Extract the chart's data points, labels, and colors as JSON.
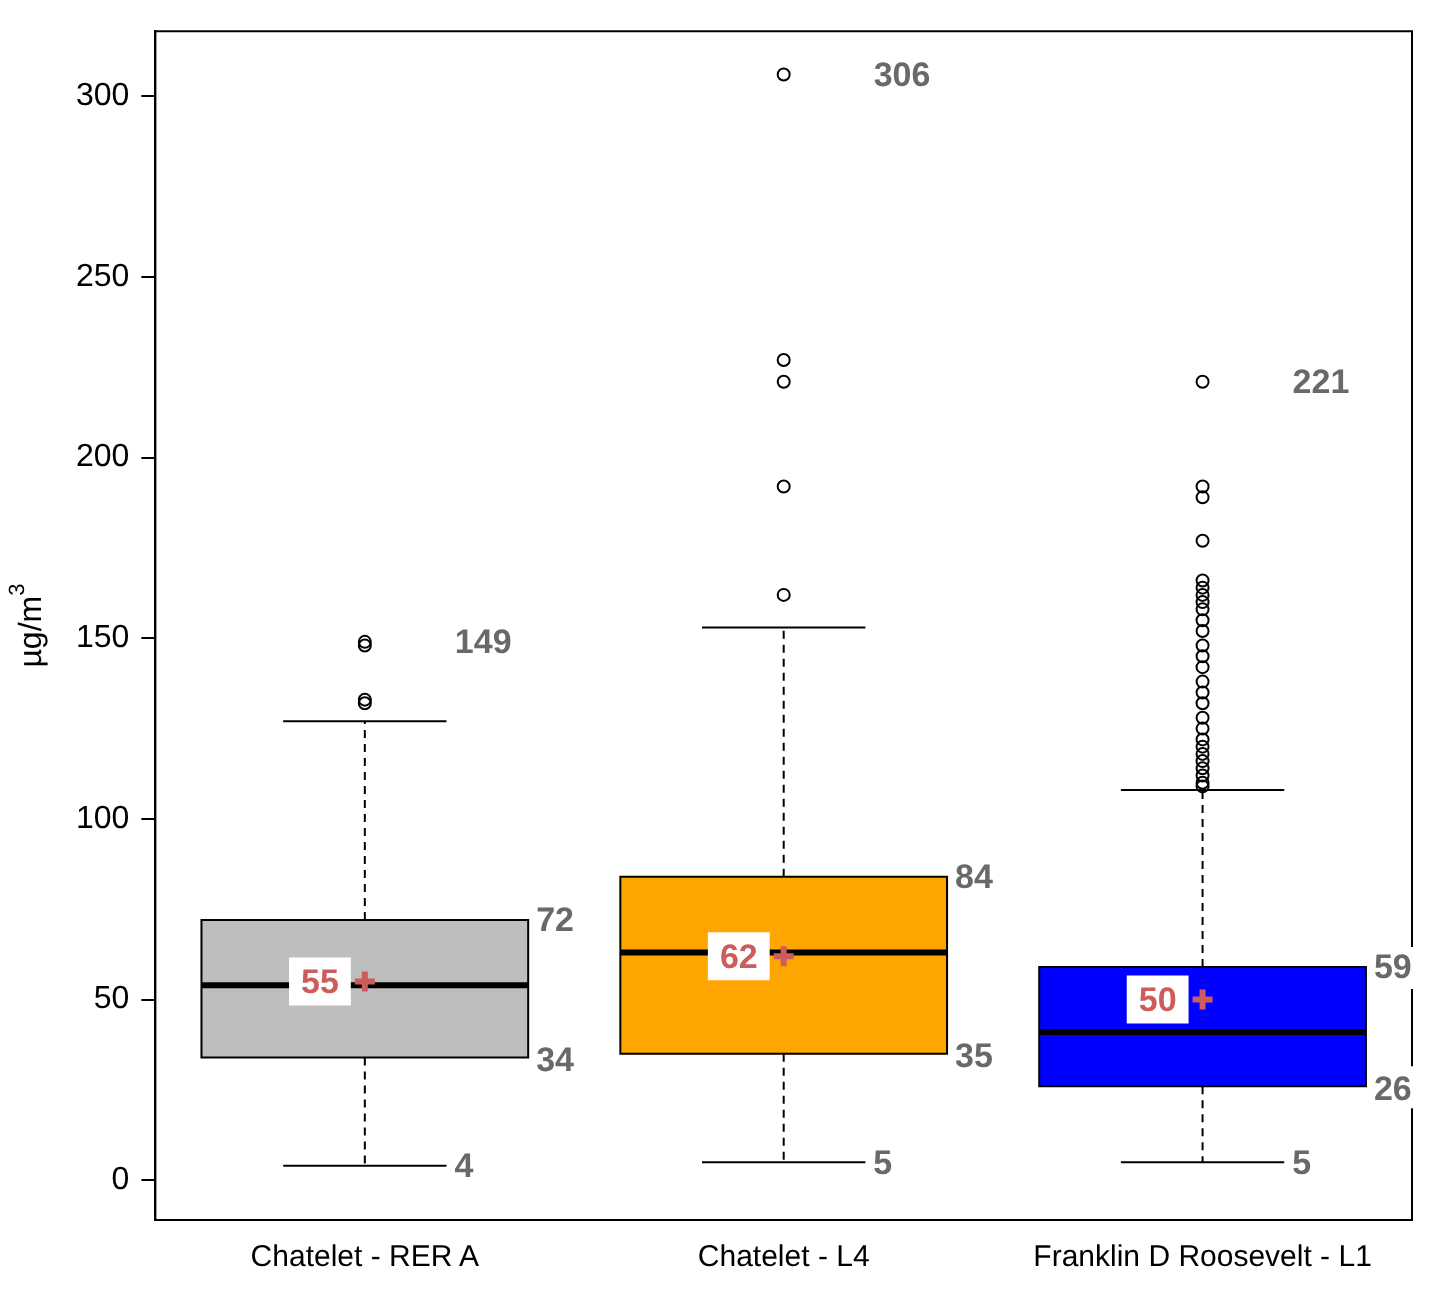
{
  "chart_data": {
    "type": "box",
    "ylabel": "µg/m$^{3}$",
    "categories": [
      "Chatelet - RER A",
      "Chatelet - L4",
      "Franklin D Roosevelt - L1"
    ],
    "colors": [
      "#bebebe",
      "#ffa500",
      "#0000ff"
    ],
    "boxes": [
      {
        "low": 4,
        "q1": 34,
        "median": 54,
        "q3": 72,
        "high": 127,
        "mean": 55,
        "outliers": [
          149,
          148,
          133,
          132
        ]
      },
      {
        "low": 5,
        "q1": 35,
        "median": 63,
        "q3": 84,
        "high": 153,
        "mean": 62,
        "outliers": [
          306,
          227,
          221,
          192,
          162
        ]
      },
      {
        "low": 5,
        "q1": 26,
        "median": 41,
        "q3": 59,
        "high": 108,
        "mean": 50,
        "outliers": [
          221,
          192,
          189,
          177,
          166,
          164,
          162,
          160,
          158,
          155,
          152,
          148,
          145,
          142,
          138,
          135,
          132,
          128,
          125,
          122,
          120,
          118,
          116,
          114,
          112,
          110,
          109
        ]
      }
    ],
    "ylim": [
      -11,
      318
    ],
    "yticks": [
      0,
      50,
      100,
      150,
      200,
      250,
      300
    ],
    "grid": false,
    "legend": false,
    "marker": "circle",
    "annotations": [
      "149",
      "72",
      "55",
      "34",
      "4",
      "306",
      "84",
      "62",
      "35",
      "5",
      "221",
      "59",
      "50",
      "26",
      "5"
    ]
  }
}
